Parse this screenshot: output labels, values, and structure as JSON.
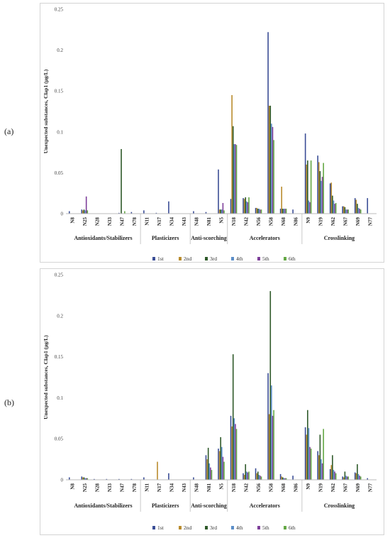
{
  "panels": [
    {
      "label": "(a)"
    },
    {
      "label": "(b)"
    }
  ],
  "colors": {
    "1st": "#3b4e96",
    "2nd": "#b98c2e",
    "3rd": "#2f5a2a",
    "4th": "#5b8ec8",
    "5th": "#7e3f9a",
    "6th": "#64a845"
  },
  "chart_data": [
    {
      "type": "bar",
      "panel": "(a)",
      "ylabel": "Unexpected substances, Clap1 (µg/L)",
      "ylim": [
        0,
        0.25
      ],
      "yticks": [
        "0",
        "0.05",
        "0.1",
        "0.15",
        "0.2",
        "0.25"
      ],
      "grid": false,
      "legend_position": "bottom",
      "categories": [
        "N8",
        "N25",
        "N28",
        "N33",
        "N47",
        "N78",
        "N11",
        "N17",
        "N34",
        "N43",
        "N48",
        "N81",
        "N5",
        "N18",
        "N42",
        "N56",
        "N58",
        "N68",
        "N86",
        "N9",
        "N19",
        "N62",
        "N67",
        "N69",
        "N77"
      ],
      "groups": [
        {
          "name": "Antioxidants/Stabilizers",
          "categories": [
            "N8",
            "N25",
            "N28",
            "N33",
            "N47",
            "N78"
          ]
        },
        {
          "name": "Plasticizers",
          "categories": [
            "N11",
            "N17",
            "N34",
            "N43"
          ]
        },
        {
          "name": "Anti-scorching",
          "categories": [
            "N48",
            "N81",
            "N5"
          ]
        },
        {
          "name": "Accelerators",
          "categories": [
            "N18",
            "N42",
            "N56",
            "N58",
            "N68",
            "N86"
          ]
        },
        {
          "name": "Crosslinking",
          "categories": [
            "N9",
            "N19",
            "N62",
            "N67",
            "N69",
            "N77"
          ]
        }
      ],
      "series": [
        {
          "name": "1st",
          "values": [
            0.003,
            0.005,
            0,
            0,
            0.001,
            0.002,
            0.004,
            0.001,
            0.015,
            0,
            0.003,
            0.002,
            0.054,
            0.018,
            0.019,
            0.007,
            0.222,
            0.006,
            0.005,
            0.098,
            0.071,
            0.037,
            0.009,
            0.019,
            0.019
          ]
        },
        {
          "name": "2nd",
          "values": [
            0,
            0.004,
            0,
            0,
            0,
            0,
            0,
            0,
            0,
            0,
            0,
            0,
            0.005,
            0.145,
            0.018,
            0.007,
            0.132,
            0.033,
            0,
            0.06,
            0.063,
            0.038,
            0.009,
            0.017,
            0
          ]
        },
        {
          "name": "3rd",
          "values": [
            0,
            0.005,
            0,
            0,
            0.079,
            0,
            0,
            0,
            0,
            0,
            0,
            0,
            0.005,
            0.107,
            0.02,
            0.006,
            0.132,
            0.006,
            0,
            0.065,
            0.052,
            0.022,
            0.008,
            0.012,
            0
          ]
        },
        {
          "name": "4th",
          "values": [
            0,
            0.004,
            0,
            0,
            0,
            0,
            0,
            0,
            0,
            0,
            0,
            0,
            0.005,
            0.085,
            0.015,
            0.006,
            0.11,
            0.006,
            0,
            0.016,
            0.04,
            0.016,
            0.005,
            0.007,
            0
          ]
        },
        {
          "name": "5th",
          "values": [
            0,
            0.021,
            0,
            0,
            0,
            0,
            0,
            0,
            0,
            0,
            0,
            0,
            0.013,
            0.085,
            0.014,
            0.005,
            0.106,
            0.006,
            0,
            0.014,
            0.045,
            0.012,
            0.005,
            0.006,
            0
          ]
        },
        {
          "name": "6th",
          "values": [
            0,
            0.004,
            0,
            0,
            0.003,
            0,
            0,
            0,
            0,
            0,
            0,
            0,
            0.004,
            0.084,
            0.02,
            0.005,
            0.09,
            0.006,
            0,
            0.065,
            0.062,
            0.013,
            0.005,
            0.005,
            0
          ]
        }
      ]
    },
    {
      "type": "bar",
      "panel": "(b)",
      "ylabel": "Unexpected substances, Clap1 (µg/L)",
      "ylim": [
        0,
        0.25
      ],
      "yticks": [
        "0",
        "0.05",
        "0.1",
        "0.15",
        "0.2",
        "0.25"
      ],
      "grid": false,
      "legend_position": "bottom",
      "categories": [
        "N8",
        "N25",
        "N28",
        "N33",
        "N47",
        "N78",
        "N11",
        "N17",
        "N34",
        "N43",
        "N48",
        "N81",
        "N5",
        "N18",
        "N42",
        "N56",
        "N58",
        "N68",
        "N86",
        "N9",
        "N19",
        "N62",
        "N67",
        "N69",
        "N77"
      ],
      "groups": [
        {
          "name": "Antioxidants/Stabilizers",
          "categories": [
            "N8",
            "N25",
            "N28",
            "N33",
            "N47",
            "N78"
          ]
        },
        {
          "name": "Plasticizers",
          "categories": [
            "N11",
            "N17",
            "N34",
            "N43"
          ]
        },
        {
          "name": "Anti-scorching",
          "categories": [
            "N48",
            "N81",
            "N5"
          ]
        },
        {
          "name": "Accelerators",
          "categories": [
            "N18",
            "N42",
            "N56",
            "N58",
            "N68",
            "N86"
          ]
        },
        {
          "name": "Crosslinking",
          "categories": [
            "N9",
            "N19",
            "N62",
            "N67",
            "N69",
            "N77"
          ]
        }
      ],
      "series": [
        {
          "name": "1st",
          "values": [
            0.003,
            0.004,
            0.001,
            0.001,
            0.001,
            0.001,
            0.003,
            0,
            0.008,
            0,
            0.003,
            0.03,
            0.038,
            0.078,
            0.008,
            0.014,
            0.13,
            0.007,
            0.005,
            0.064,
            0.035,
            0.013,
            0.004,
            0.009,
            0.002
          ]
        },
        {
          "name": "2nd",
          "values": [
            0,
            0.003,
            0,
            0,
            0,
            0,
            0,
            0.022,
            0,
            0,
            0,
            0.025,
            0.035,
            0.065,
            0.006,
            0.008,
            0.08,
            0.004,
            0,
            0.055,
            0.03,
            0.018,
            0.003,
            0.008,
            0
          ]
        },
        {
          "name": "3rd",
          "values": [
            0,
            0.003,
            0,
            0,
            0,
            0,
            0,
            0,
            0,
            0,
            0,
            0.039,
            0.052,
            0.153,
            0.019,
            0.01,
            0.23,
            0.003,
            0,
            0.085,
            0.055,
            0.03,
            0.01,
            0.019,
            0
          ]
        },
        {
          "name": "4th",
          "values": [
            0,
            0.002,
            0,
            0,
            0,
            0,
            0,
            0,
            0,
            0,
            0,
            0.02,
            0.04,
            0.075,
            0.01,
            0.006,
            0.115,
            0.002,
            0,
            0.063,
            0.025,
            0.012,
            0.005,
            0.007,
            0
          ]
        },
        {
          "name": "5th",
          "values": [
            0,
            0.002,
            0,
            0,
            0,
            0,
            0,
            0,
            0,
            0,
            0,
            0.015,
            0.028,
            0.068,
            0.009,
            0.005,
            0.078,
            0.002,
            0,
            0.04,
            0.02,
            0.01,
            0.004,
            0.005,
            0
          ]
        },
        {
          "name": "6th",
          "values": [
            0,
            0.002,
            0,
            0,
            0,
            0,
            0,
            0,
            0,
            0,
            0,
            0.012,
            0.022,
            0.062,
            0.01,
            0.004,
            0.085,
            0.002,
            0,
            0.038,
            0.062,
            0.008,
            0.004,
            0.004,
            0
          ]
        }
      ]
    }
  ]
}
